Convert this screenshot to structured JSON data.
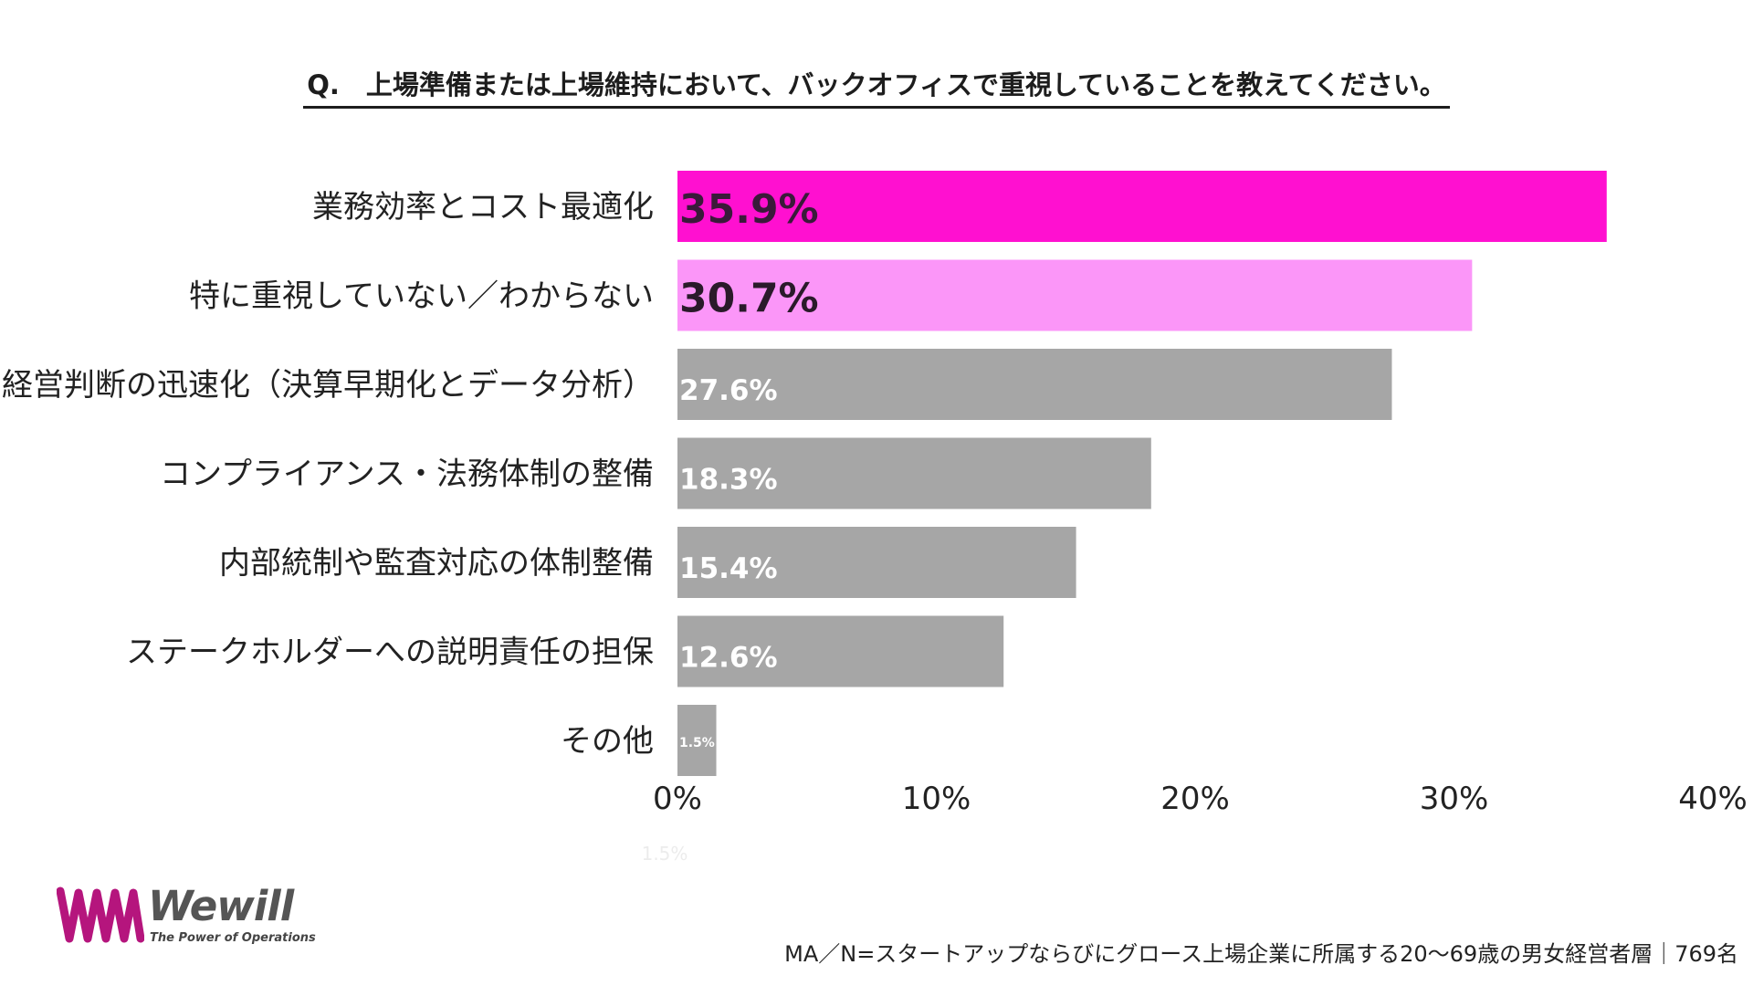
{
  "title": "Q.　上場準備または上場維持において、バックオフィスで重視していることを教えてください。",
  "chart_data": {
    "type": "bar",
    "orientation": "horizontal",
    "title": "Q.　上場準備または上場維持において、バックオフィスで重視していることを教えてください。",
    "categories": [
      "業務効率とコスト最適化",
      "特に重視していない／わからない",
      "経営判断の迅速化（決算早期化とデータ分析）",
      "コンプライアンス・法務体制の整備",
      "内部統制や監査対応の体制整備",
      "ステークホルダーへの説明責任の担保",
      "その他"
    ],
    "values": [
      35.9,
      30.7,
      27.6,
      18.3,
      15.4,
      12.6,
      1.5
    ],
    "value_labels": [
      "35.9%",
      "30.7%",
      "27.6%",
      "18.3%",
      "15.4%",
      "12.6%",
      "1.5%"
    ],
    "bar_colors": [
      "#ff10d0",
      "#fb96f8",
      "#a6a6a6",
      "#a6a6a6",
      "#a6a6a6",
      "#a6a6a6",
      "#a6a6a6"
    ],
    "label_colors": [
      "#3a1a3a",
      "#2a1a2a",
      "#ffffff",
      "#ffffff",
      "#ffffff",
      "#ffffff",
      "#ffffff"
    ],
    "label_emphasis": [
      "large",
      "large",
      "normal",
      "normal",
      "normal",
      "normal",
      "small"
    ],
    "xlim": [
      0,
      40
    ],
    "xticks": [
      0,
      10,
      20,
      30,
      40
    ],
    "xtick_labels": [
      "0%",
      "10%",
      "20%",
      "30%",
      "40%"
    ],
    "grid": false,
    "legend": "none"
  },
  "stray_label": "1.5%",
  "footnote": "MA／N=スタートアップならびにグロース上場企業に所属する20〜69歳の男女経営者層｜769名",
  "logo": {
    "word": "Wewill",
    "tagline": "The Power of Operations",
    "color": "#b5157d"
  }
}
